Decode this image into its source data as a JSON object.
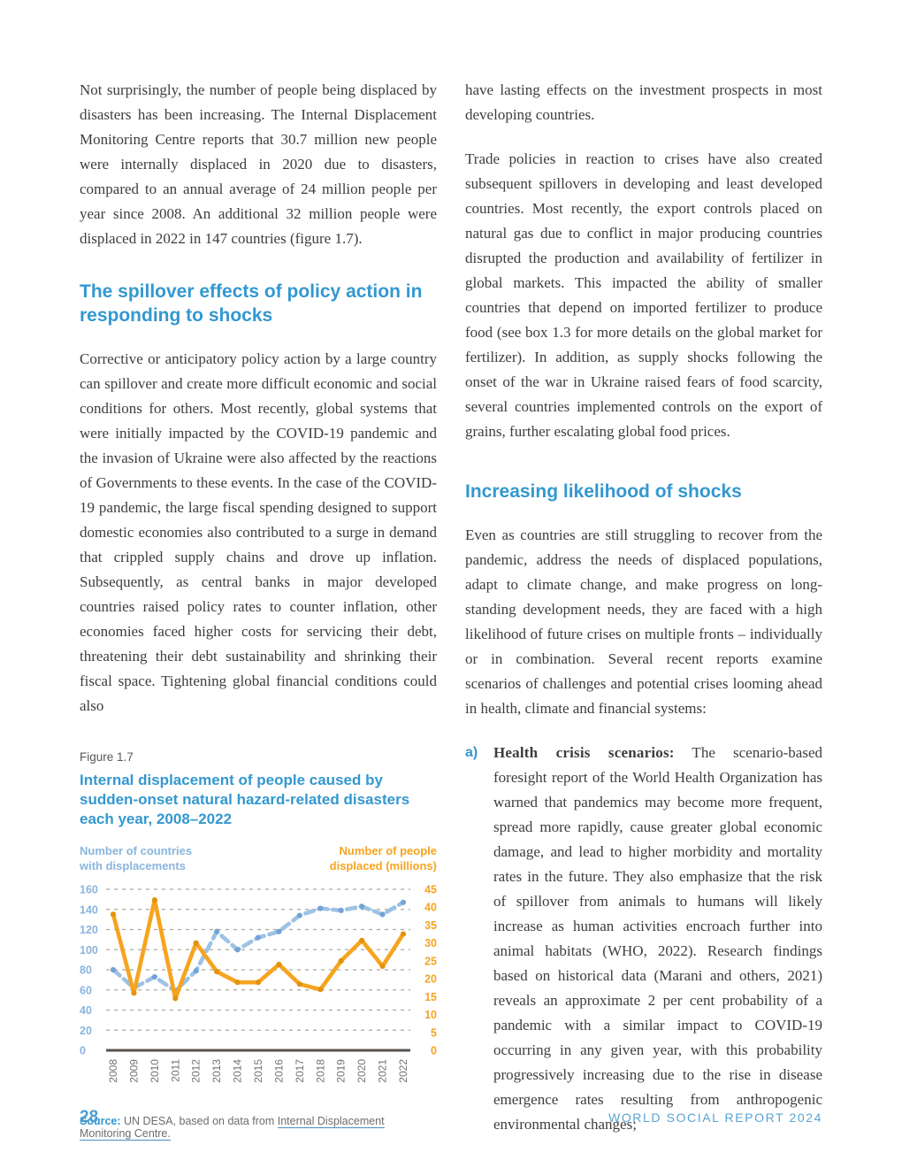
{
  "left_column": {
    "para1": "Not surprisingly, the number of people being displaced by disasters has been increasing. The Internal Displacement Monitoring Centre reports that 30.7 million new people were internally displaced in 2020 due to disasters, compared to an annual average of 24 million people per year since 2008. An additional 32 million people were displaced in 2022 in 147 countries (figure 1.7).",
    "heading": "The spillover effects of policy action in responding to shocks",
    "para2": "Corrective or anticipatory policy action by a large country can spillover and create more difficult economic and social conditions for others. Most recently, global systems that were initially impacted by the COVID-19 pandemic and the invasion of Ukraine were also affected by the reactions of Governments to these events. In the case of the COVID-19 pandemic, the large fiscal spending designed to support domestic economies also contributed to a surge in demand that crippled supply chains and drove up inflation. Subsequently, as central banks in major developed countries raised policy rates to counter inflation, other economies faced higher costs for servicing their debt, threatening their debt sustainability and shrinking their fiscal space. Tightening global financial conditions could also",
    "figure": {
      "label": "Figure 1.7",
      "title": "Internal displacement of people caused by sudden-onset natural hazard-related disasters each year, 2008–2022",
      "left_axis_head": "Number of countries\nwith displacements",
      "right_axis_head": "Number of people\ndisplaced (millions)",
      "source_prefix": "Source:",
      "source_middle": " UN DESA, based on data from ",
      "source_link": "Internal Displacement Monitoring Centre."
    }
  },
  "right_column": {
    "para1": "have lasting effects on the investment prospects in most developing countries.",
    "para2": "Trade policies in reaction to crises have also created subsequent spillovers in developing and least developed countries. Most recently, the export controls placed on natural gas due to conflict in major producing countries disrupted the production and availability of fertilizer in global markets. This impacted the ability of smaller countries that depend on imported fertilizer to produce food (see box 1.3 for more details on the global market for fertilizer). In addition, as supply shocks following the onset of the war in Ukraine raised fears of food scarcity, several countries implemented controls on the export of grains, further escalating global food prices.",
    "heading": "Increasing likelihood of shocks",
    "para3": "Even as countries are still struggling to recover from the pandemic, address the needs of displaced populations, adapt to climate change, and make progress on long-standing development needs, they are faced with a high likelihood of future crises on multiple fronts – individually or in combination. Several recent reports examine scenarios of challenges and potential crises looming ahead in health, climate and financial systems:",
    "list_a": {
      "marker": "a)",
      "bold": "Health crisis scenarios:",
      "text": " The scenario-based foresight report of the World Health Organization has warned that pandemics may become more frequent, spread more rapidly, cause greater global economic damage, and lead to higher morbidity and mortality rates in the future. They also emphasize that the risk of spillover from animals to humans will likely increase as human activities encroach further into animal habitats (WHO, 2022). Research findings based on historical data (Marani and others, 2021) reveals an approximate 2 per cent probability of a pandemic with a similar impact to COVID-19 occurring in any given year, with this probability progressively increasing due to the rise in disease emergence rates resulting from anthropogenic environmental changes;"
    }
  },
  "footer": {
    "page_number": "28",
    "report_title": "WORLD SOCIAL REPORT 2024"
  },
  "chart_data": {
    "type": "line",
    "title": "Internal displacement of people caused by sudden-onset natural hazard-related disasters each year, 2008–2022",
    "categories": [
      "2008",
      "2009",
      "2010",
      "2011",
      "2012",
      "2013",
      "2014",
      "2015",
      "2016",
      "2017",
      "2018",
      "2019",
      "2020",
      "2021",
      "2022"
    ],
    "series": [
      {
        "name": "Number of countries with displacements",
        "axis": "left",
        "color": "#9cc2e5",
        "marker_color": "#74a3d4",
        "dashed": true,
        "values": [
          80,
          62,
          73,
          59,
          79,
          118,
          100,
          112,
          118,
          134,
          141,
          139,
          143,
          135,
          147
        ]
      },
      {
        "name": "Number of people displaced (millions)",
        "axis": "right",
        "color": "#f6a41f",
        "marker_color": "#e2920c",
        "dashed": false,
        "values": [
          38,
          16,
          42,
          14.5,
          30,
          22,
          19,
          19,
          24,
          18.5,
          17,
          25,
          30.7,
          23.5,
          32.5
        ]
      }
    ],
    "left_axis": {
      "min": 0,
      "max": 160,
      "step": 20,
      "color": "#8ab5de"
    },
    "right_axis": {
      "min": 0,
      "max": 45,
      "step": 5,
      "color": "#f6a41f"
    },
    "grid": "dashed horizontal, solid zero baseline",
    "legend_position": "axis headers above chart"
  }
}
